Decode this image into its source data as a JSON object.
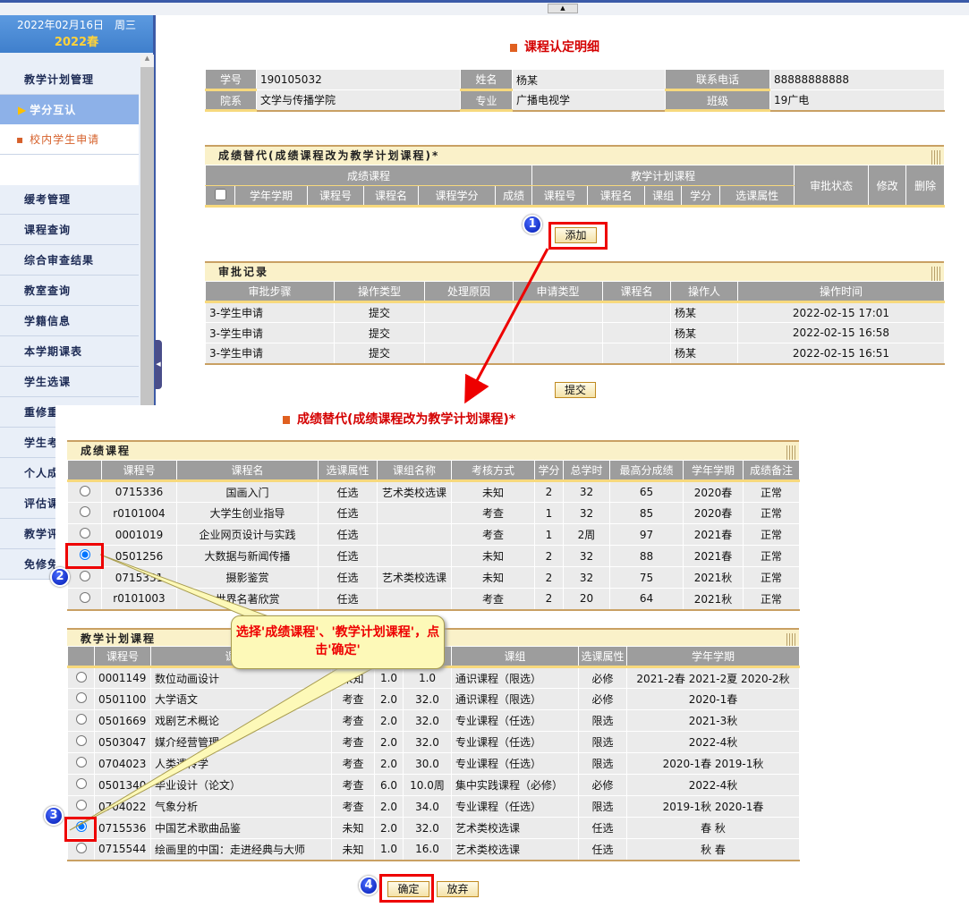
{
  "topbar": {
    "toggle_icon": "▲"
  },
  "sidebar": {
    "date": "2022年02月16日　周三",
    "term": "2022春",
    "items": [
      "教学计划管理",
      "学分互认",
      "校内学生申请",
      "缓考管理",
      "课程查询",
      "综合审查结果",
      "教室查询",
      "学籍信息",
      "本学期课表",
      "学生选课",
      "重修重",
      "学生考",
      "个人成",
      "评估课",
      "教学评",
      "免修免"
    ]
  },
  "page_title": "课程认定明细",
  "info": {
    "rows": [
      [
        "学号",
        "190105032",
        "姓名",
        "杨某",
        "联系电话",
        "88888888888"
      ],
      [
        "院系",
        "文学与传播学院",
        "专业",
        "广播电视学",
        "班级",
        "19广电"
      ]
    ]
  },
  "substitution": {
    "title": "成绩替代(成绩课程改为教学计划课程)*",
    "group1": "成绩课程",
    "group2": "教学计划课程",
    "status": "审批状态",
    "edit": "修改",
    "delete": "删除",
    "cols": [
      "学年学期",
      "课程号",
      "课程名",
      "课程学分",
      "成绩",
      "课程号",
      "课程名",
      "课组",
      "学分",
      "选课属性"
    ],
    "add_label": "添加"
  },
  "approval": {
    "title": "审批记录",
    "cols": [
      "审批步骤",
      "操作类型",
      "处理原因",
      "申请类型",
      "课程名",
      "操作人",
      "操作时间"
    ],
    "rows": [
      [
        "3-学生申请",
        "提交",
        "",
        "",
        "",
        "杨某",
        "2022-02-15 17:01"
      ],
      [
        "3-学生申请",
        "提交",
        "",
        "",
        "",
        "杨某",
        "2022-02-15 16:58"
      ],
      [
        "3-学生申请",
        "提交",
        "",
        "",
        "",
        "杨某",
        "2022-02-15 16:51"
      ]
    ],
    "submit_label": "提交"
  },
  "dialog": {
    "title": "成绩替代(成绩课程改为教学计划课程)*",
    "grades": {
      "title": "成绩课程",
      "cols": [
        "",
        "课程号",
        "课程名",
        "选课属性",
        "课组名称",
        "考核方式",
        "学分",
        "总学时",
        "最高分成绩",
        "学年学期",
        "成绩备注"
      ],
      "selected": 3,
      "rows": [
        [
          "0715336",
          "国画入门",
          "任选",
          "艺术类校选课",
          "未知",
          "2",
          "32",
          "65",
          "2020春",
          "正常"
        ],
        [
          "r0101004",
          "大学生创业指导",
          "任选",
          "",
          "考查",
          "1",
          "32",
          "85",
          "2020春",
          "正常"
        ],
        [
          "0001019",
          "企业网页设计与实践",
          "任选",
          "",
          "考查",
          "1",
          "2周",
          "97",
          "2021春",
          "正常"
        ],
        [
          "0501256",
          "大数据与新闻传播",
          "任选",
          "",
          "未知",
          "2",
          "32",
          "88",
          "2021春",
          "正常"
        ],
        [
          "0715331",
          "摄影鉴赏",
          "任选",
          "艺术类校选课",
          "未知",
          "2",
          "32",
          "75",
          "2021秋",
          "正常"
        ],
        [
          "r0101003",
          "世界名著欣赏",
          "任选",
          "",
          "考查",
          "2",
          "20",
          "64",
          "2021秋",
          "正常"
        ]
      ]
    },
    "plan": {
      "title": "教学计划课程",
      "cols": [
        "",
        "课程号",
        "课程名",
        "",
        "",
        "",
        "课组",
        "选课属性",
        "学年学期"
      ],
      "selected": 7,
      "rows": [
        [
          "0001149",
          "数位动画设计",
          "未知",
          "1.0",
          "1.0",
          "通识课程（限选）",
          "必修",
          "2021-2春 2021-2夏 2020-2秋"
        ],
        [
          "0501100",
          "大学语文",
          "考查",
          "2.0",
          "32.0",
          "通识课程（限选）",
          "必修",
          "2020-1春"
        ],
        [
          "0501669",
          "戏剧艺术概论",
          "考查",
          "2.0",
          "32.0",
          "专业课程（任选）",
          "限选",
          "2021-3秋"
        ],
        [
          "0503047",
          "媒介经营管理",
          "考查",
          "2.0",
          "32.0",
          "专业课程（任选）",
          "限选",
          "2022-4秋"
        ],
        [
          "0704023",
          "人类遗传学",
          "考查",
          "2.0",
          "30.0",
          "专业课程（任选）",
          "限选",
          "2020-1春 2019-1秋"
        ],
        [
          "0501340",
          "毕业设计（论文）",
          "考查",
          "6.0",
          "10.0周",
          "集中实践课程（必修）",
          "必修",
          "2022-4秋"
        ],
        [
          "0704022",
          "气象分析",
          "考查",
          "2.0",
          "34.0",
          "专业课程（任选）",
          "限选",
          "2019-1秋 2020-1春"
        ],
        [
          "0715536",
          "中国艺术歌曲品鉴",
          "未知",
          "2.0",
          "32.0",
          "艺术类校选课",
          "任选",
          "春 秋"
        ],
        [
          "0715544",
          "绘画里的中国：走进经典与大师",
          "未知",
          "1.0",
          "16.0",
          "艺术类校选课",
          "任选",
          "秋 春"
        ]
      ]
    },
    "confirm_label": "确定",
    "cancel_label": "放弃"
  },
  "annotations": {
    "callout": "选择'成绩课程'、'教学计划课程'，点击'确定'",
    "badges": [
      "1",
      "2",
      "3",
      "4"
    ],
    "accent": "#e00000"
  }
}
